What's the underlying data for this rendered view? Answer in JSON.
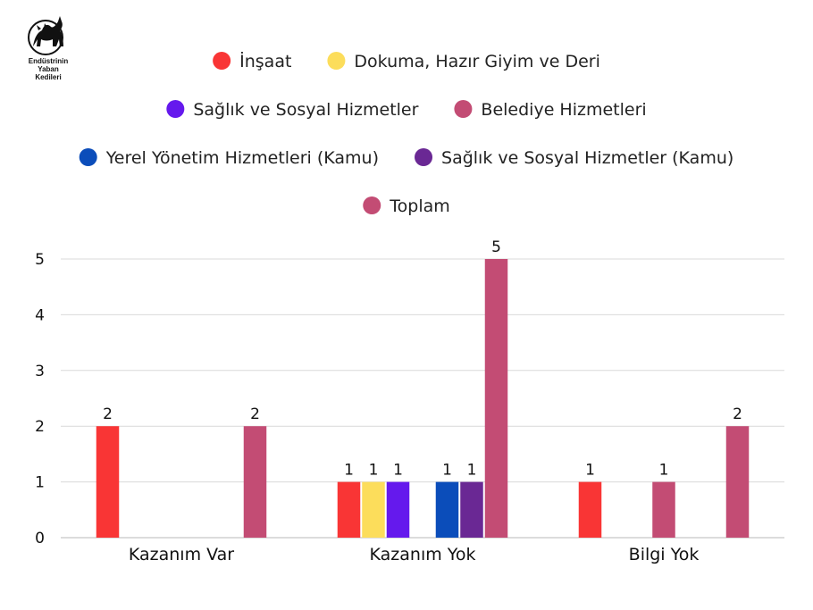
{
  "logo": {
    "lines": [
      "Endüstrinin",
      "Yaban",
      "Kedileri"
    ],
    "icon": "black-cat-icon"
  },
  "chart_data": {
    "type": "bar",
    "categories": [
      "Kazanım Var",
      "Kazanım Yok",
      "Bilgi Yok"
    ],
    "series": [
      {
        "name": "İnşaat",
        "color": "#f93535",
        "values": [
          2,
          1,
          1
        ]
      },
      {
        "name": "Dokuma, Hazır Giyim ve Deri",
        "color": "#fcdd5b",
        "values": [
          null,
          1,
          null
        ]
      },
      {
        "name": "Sağlık ve Sosyal Hizmetler",
        "color": "#6519ed",
        "values": [
          null,
          1,
          null
        ]
      },
      {
        "name": "Belediye Hizmetleri",
        "color": "#c34c74",
        "values": [
          null,
          null,
          1
        ]
      },
      {
        "name": "Yerel Yönetim Hizmetleri (Kamu)",
        "color": "#0b4dba",
        "values": [
          null,
          1,
          null
        ]
      },
      {
        "name": "Sağlık ve Sosyal Hizmetler (Kamu)",
        "color": "#6a2894",
        "values": [
          null,
          1,
          null
        ]
      },
      {
        "name": "Toplam",
        "color": "#c34c74",
        "values": [
          2,
          5,
          2
        ]
      }
    ],
    "y_ticks": [
      "0",
      "1",
      "2",
      "3",
      "4",
      "5"
    ],
    "ylim": [
      0,
      5
    ],
    "grid": true,
    "legend_position": "top",
    "title": "",
    "xlabel": "",
    "ylabel": ""
  }
}
